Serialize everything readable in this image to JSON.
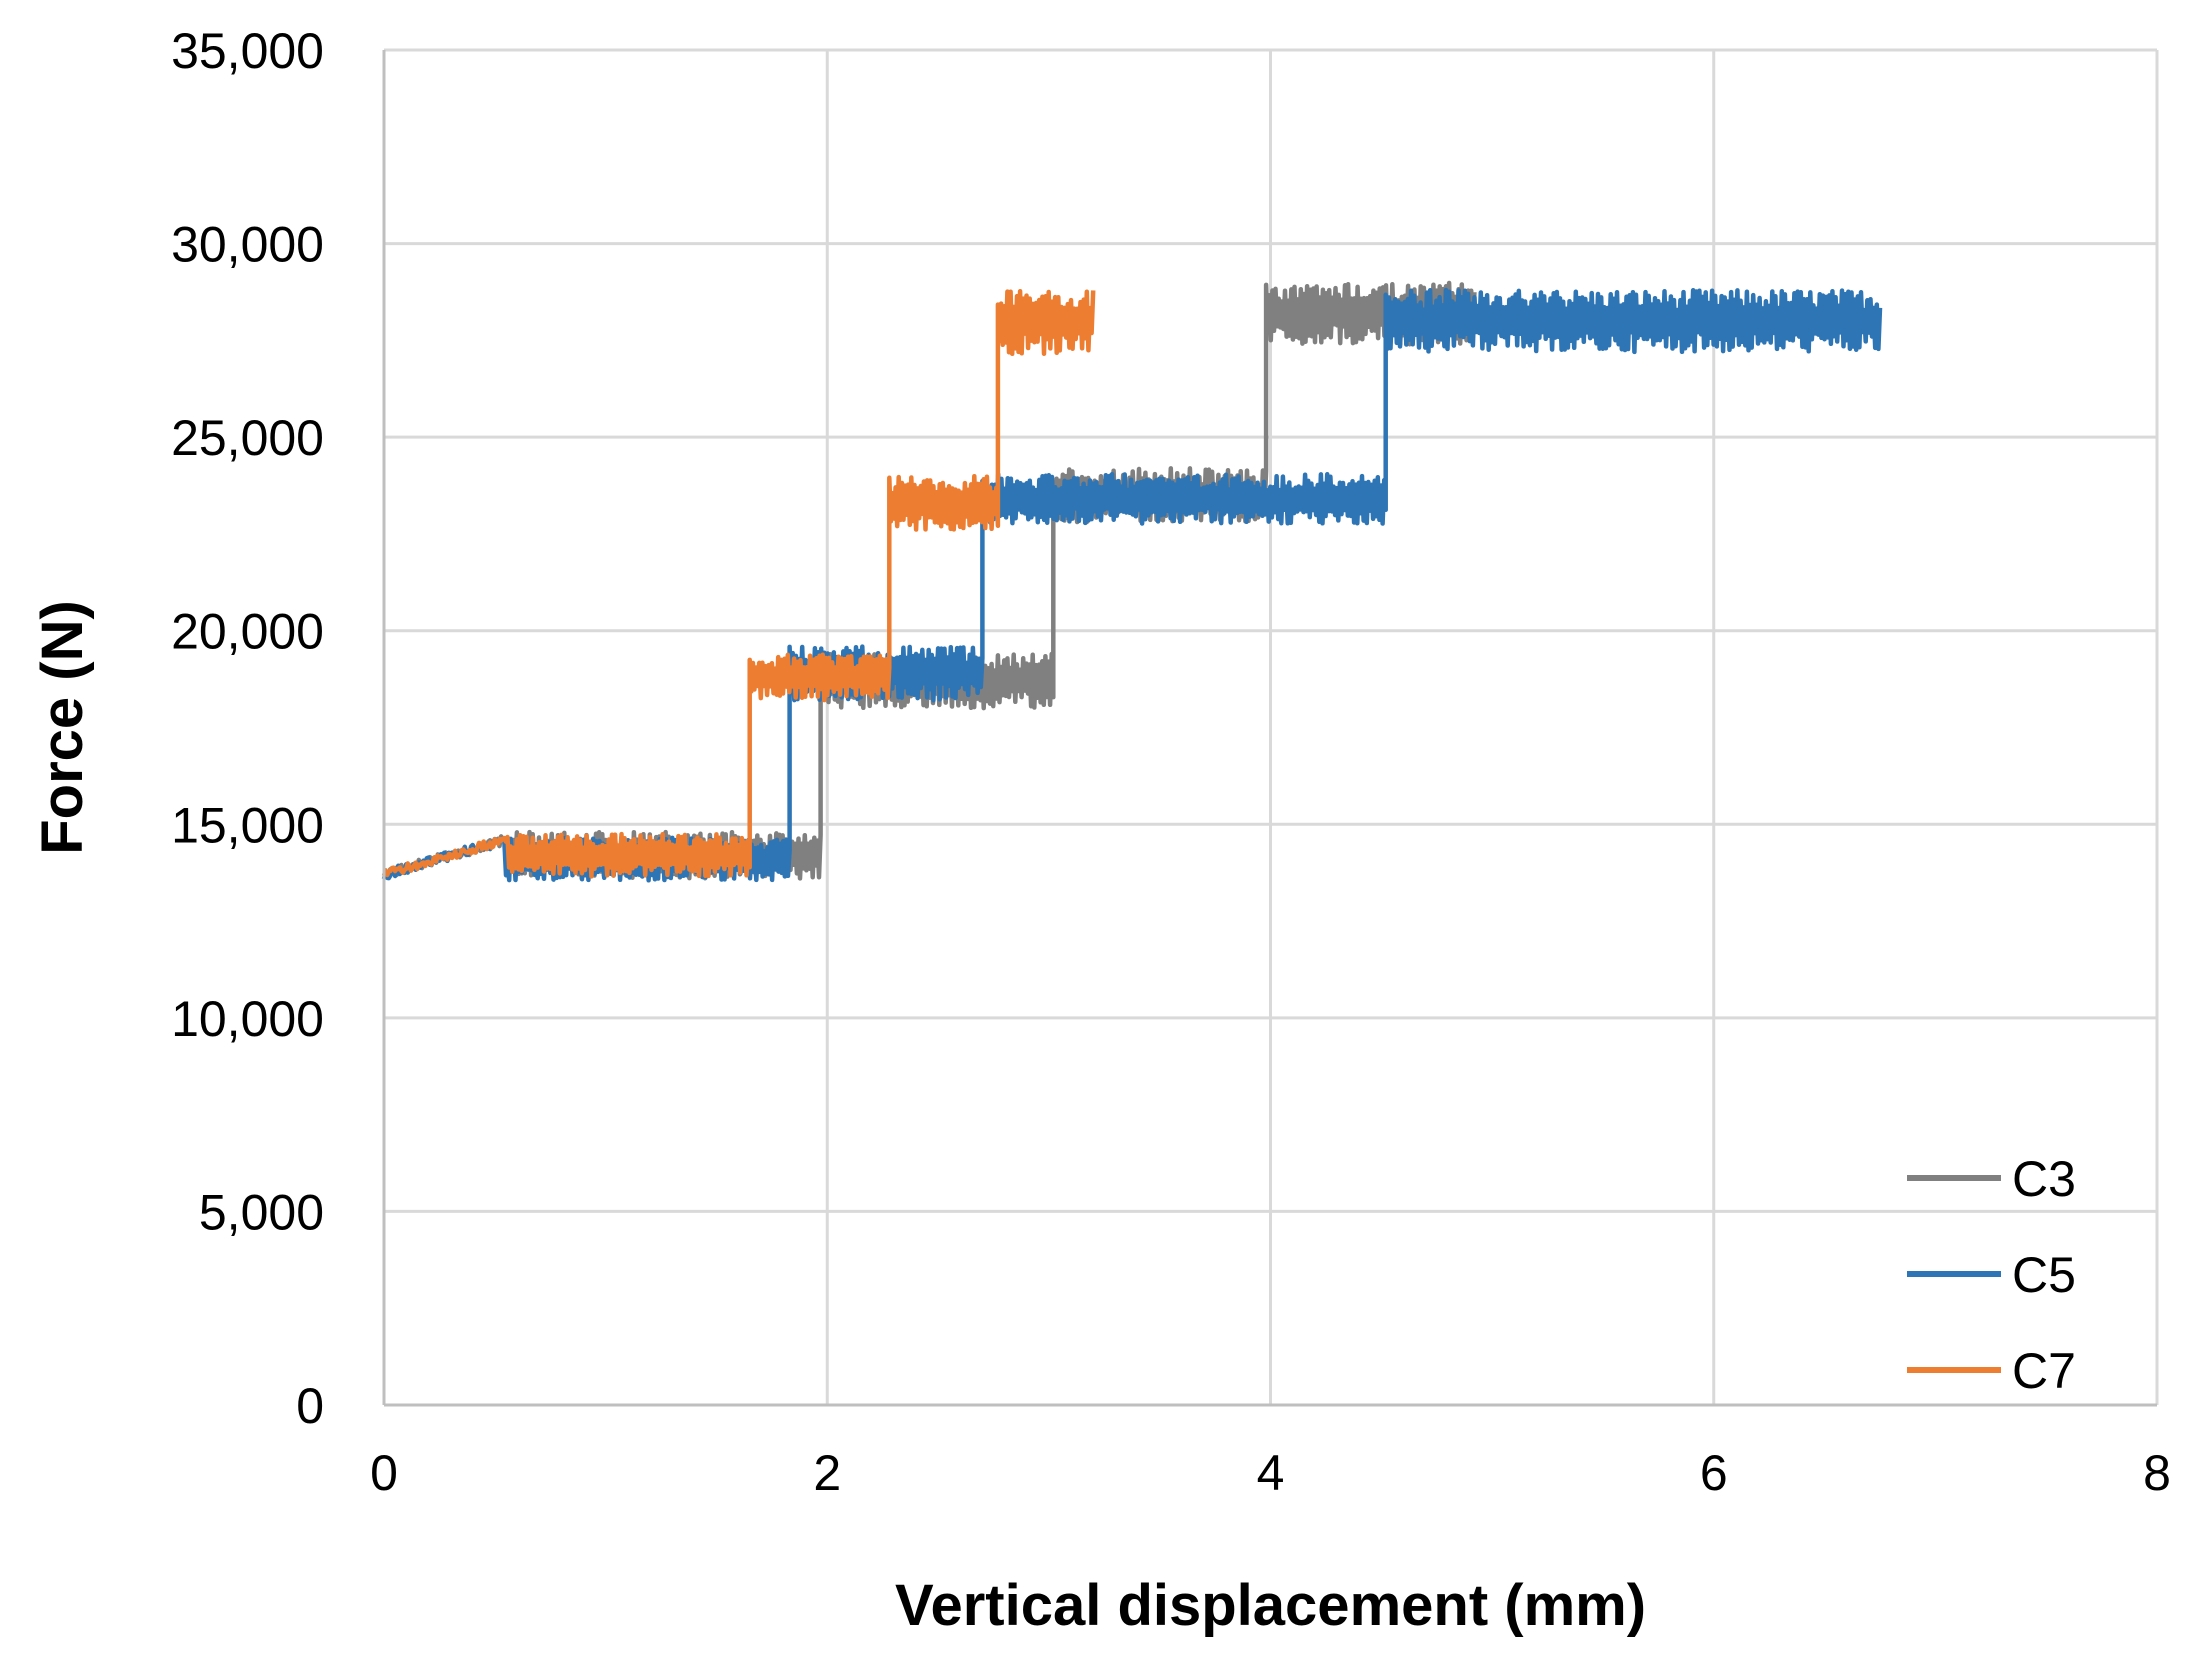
{
  "chart_data": {
    "type": "line",
    "title": "",
    "xlabel": "Vertical displacement (mm)",
    "ylabel": "Force (N)",
    "xlim": [
      0,
      8
    ],
    "ylim": [
      0,
      35000
    ],
    "xticks": [
      0,
      2,
      4,
      6,
      8
    ],
    "yticks": [
      0,
      5000,
      10000,
      15000,
      20000,
      25000,
      30000,
      35000
    ],
    "xtick_labels": [
      "0",
      "2",
      "4",
      "6",
      "8"
    ],
    "ytick_labels": [
      "0",
      "5,000",
      "10,000",
      "15,000",
      "20,000",
      "25,000",
      "30,000",
      "35,000"
    ],
    "grid": true,
    "legend_position": "bottom-right",
    "series": [
      {
        "name": "C3",
        "color": "#808080",
        "plateaus": [
          {
            "x_start": 0.0,
            "x_end": 1.97,
            "level": 14200,
            "amplitude": 600
          },
          {
            "x_start": 1.97,
            "x_end": 3.02,
            "level": 18700,
            "amplitude": 700
          },
          {
            "x_start": 3.02,
            "x_end": 3.98,
            "level": 23500,
            "amplitude": 700
          },
          {
            "x_start": 3.98,
            "x_end": 4.92,
            "level": 28200,
            "amplitude": 800
          }
        ]
      },
      {
        "name": "C5",
        "color": "#2E75B6",
        "plateaus": [
          {
            "x_start": 0.0,
            "x_end": 1.83,
            "level": 14100,
            "amplitude": 550
          },
          {
            "x_start": 1.83,
            "x_end": 2.7,
            "level": 18900,
            "amplitude": 700
          },
          {
            "x_start": 2.7,
            "x_end": 4.52,
            "level": 23400,
            "amplitude": 650
          },
          {
            "x_start": 4.52,
            "x_end": 6.75,
            "level": 28000,
            "amplitude": 800
          }
        ]
      },
      {
        "name": "C7",
        "color": "#ED7D31",
        "plateaus": [
          {
            "x_start": 0.0,
            "x_end": 1.65,
            "level": 14200,
            "amplitude": 550
          },
          {
            "x_start": 1.65,
            "x_end": 2.28,
            "level": 18800,
            "amplitude": 600
          },
          {
            "x_start": 2.28,
            "x_end": 2.77,
            "level": 23300,
            "amplitude": 700
          },
          {
            "x_start": 2.77,
            "x_end": 3.2,
            "level": 28000,
            "amplitude": 850
          }
        ]
      }
    ]
  }
}
